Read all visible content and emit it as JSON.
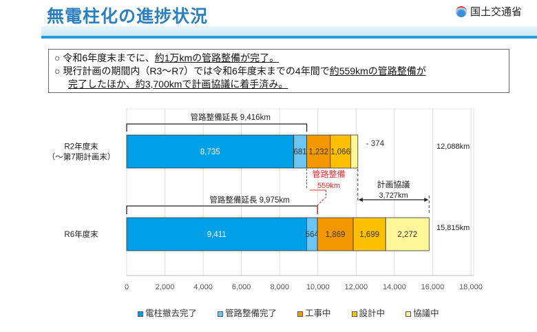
{
  "header": {
    "title": "無電柱化の進捗状況",
    "ministry": "国土交通省"
  },
  "summary": {
    "line1_a": "令和6年度末までに、",
    "line1_b": "約1万kmの管路整備が完了。",
    "line2_a": "現行計画の期間内（R3～R7）では令和6年度末までの4年間で",
    "line2_b": "約559kmの管路整備が",
    "line3_a": "完了したほか、約3,700kmで計画協議に着手済み。",
    "bullet": "○"
  },
  "chart_data": {
    "type": "bar",
    "orientation": "horizontal-stacked",
    "categories": [
      "R2年度末\n（～第7期計画末）",
      "R6年度末"
    ],
    "category_lines": [
      [
        "R2年度末",
        "（～第7期計画末）"
      ],
      [
        "R6年度末"
      ]
    ],
    "series": [
      {
        "name": "電柱撤去完了",
        "color": "#00a0e9",
        "values": [
          8735,
          9411
        ],
        "labels": [
          "8,735",
          "9,411"
        ]
      },
      {
        "name": "管路整備完了",
        "color": "#6cc4f0",
        "values": [
          681,
          564
        ],
        "labels": [
          "681",
          "564"
        ]
      },
      {
        "name": "工事中",
        "color": "#f39800",
        "values": [
          1232,
          1869
        ],
        "labels": [
          "1,232",
          "1,869"
        ]
      },
      {
        "name": "設計中",
        "color": "#fbc000",
        "values": [
          1066,
          1699
        ],
        "labels": [
          "1,066",
          "1,699"
        ]
      },
      {
        "name": "協議中",
        "color": "#fff799",
        "values": [
          374,
          2272
        ],
        "labels": [
          "374",
          "2,272"
        ]
      }
    ],
    "totals": [
      "12,088km",
      "15,815km"
    ],
    "xlim": [
      0,
      18000
    ],
    "xticks": [
      0,
      2000,
      4000,
      6000,
      8000,
      10000,
      12000,
      14000,
      16000,
      18000
    ],
    "xtick_labels": [
      "0",
      "2,000",
      "4,000",
      "6,000",
      "8,000",
      "10,000",
      "12,000",
      "14,000",
      "16,000",
      "18,000"
    ],
    "grid": true,
    "legend_position": "bottom",
    "annotations": {
      "r2_pipe": {
        "label": "管路整備延長  9,416km",
        "value": 9416
      },
      "r6_pipe": {
        "label": "管路整備延長  9,975km",
        "value": 9975
      },
      "diff_title": "管路整備",
      "diff_value": "559km",
      "diff_color": "#e53030",
      "plan_title": "計画協議",
      "plan_value": "3,727km",
      "plan_from": 12088,
      "plan_to": 15815
    }
  }
}
